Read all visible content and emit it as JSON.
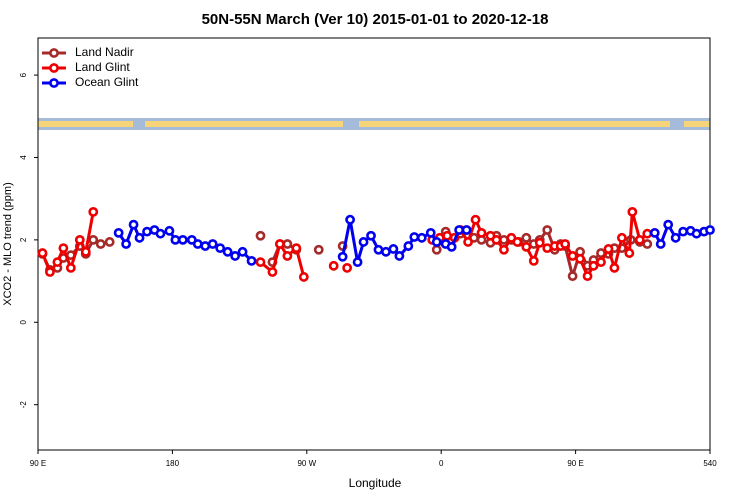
{
  "chart_data": {
    "type": "line",
    "title": "50N-55N March (Ver 10)   2015-01-01 to 2020-12-18",
    "x_label": "Longitude",
    "y_label": "XCO2 - MLO trend (ppm)",
    "xlim": [
      90,
      540
    ],
    "xticks": [
      {
        "value": 90,
        "label": "90 E"
      },
      180,
      {
        "value": 270,
        "label": "90 W"
      },
      {
        "value": 360,
        "label": "0"
      },
      {
        "value": 450,
        "label": "90 E"
      },
      540
    ],
    "ylim": [
      -3.1,
      6.9
    ],
    "yticks": [
      -2,
      0,
      2,
      4,
      6
    ],
    "legend": "top-left",
    "series": [
      {
        "name": "Land Nadir",
        "color": "#a52a2a",
        "x": [
          93,
          98,
          103,
          107,
          112,
          118,
          122,
          127,
          132,
          138,
          185,
          239,
          243,
          247,
          252,
          257,
          263,
          270,
          278,
          285,
          294,
          320,
          357,
          363,
          367,
          373,
          377,
          382,
          387,
          393,
          397,
          402,
          407,
          412,
          417,
          422,
          426,
          431,
          436,
          440,
          443,
          448,
          453,
          458,
          462,
          467,
          472,
          476,
          481,
          487,
          493,
          498
        ],
        "values": [
          1.66,
          1.27,
          1.32,
          1.56,
          1.63,
          1.85,
          1.66,
          2.0,
          1.9,
          1.95,
          null,
          2.1,
          null,
          1.46,
          1.9,
          1.9,
          1.76,
          null,
          1.76,
          null,
          1.85,
          null,
          1.76,
          2.2,
          2.0,
          2.15,
          2.24,
          2.05,
          2.0,
          1.93,
          2.1,
          2.0,
          2.0,
          1.95,
          2.05,
          1.9,
          2.0,
          2.24,
          1.76,
          1.9,
          1.85,
          1.12,
          1.71,
          1.37,
          1.51,
          1.68,
          1.66,
          1.8,
          1.8,
          2.0,
          1.95,
          1.9
        ]
      },
      {
        "name": "Land Glint",
        "color": "#ee0000",
        "x": [
          93,
          98,
          103,
          107,
          112,
          118,
          122,
          127,
          200,
          239,
          247,
          252,
          257,
          263,
          268,
          280,
          288,
          292,
          297,
          330,
          354,
          359,
          364,
          369,
          373,
          378,
          383,
          387,
          393,
          397,
          402,
          407,
          411,
          417,
          422,
          426,
          431,
          436,
          440,
          443,
          448,
          453,
          458,
          462,
          467,
          472,
          476,
          481,
          486,
          488,
          493,
          498
        ],
        "values": [
          1.68,
          1.22,
          1.46,
          1.8,
          1.32,
          2.0,
          1.71,
          2.68,
          null,
          1.46,
          1.22,
          1.9,
          1.61,
          1.8,
          1.1,
          null,
          1.37,
          null,
          1.32,
          null,
          2.0,
          2.05,
          2.1,
          2.05,
          2.24,
          1.95,
          2.49,
          2.17,
          2.1,
          2.0,
          1.76,
          2.05,
          1.95,
          1.83,
          1.49,
          1.93,
          1.8,
          1.85,
          1.85,
          1.9,
          1.61,
          1.54,
          1.12,
          1.37,
          1.46,
          1.78,
          1.32,
          2.05,
          1.68,
          2.68,
          2.0,
          2.15
        ]
      },
      {
        "name": "Ocean Glint",
        "color": "#0000ee",
        "x": [
          144,
          149,
          154,
          158,
          163,
          168,
          172,
          178,
          182,
          187,
          193,
          197,
          202,
          207,
          212,
          217,
          222,
          227,
          233,
          260,
          294,
          299,
          304,
          308,
          313,
          318,
          323,
          328,
          332,
          338,
          342,
          347,
          353,
          357,
          363,
          367,
          372,
          377,
          440,
          503,
          507,
          512,
          517,
          522,
          527,
          531,
          536,
          540
        ],
        "values": [
          2.17,
          1.9,
          2.37,
          2.05,
          2.2,
          2.24,
          2.15,
          2.22,
          2.0,
          2.0,
          2.0,
          1.9,
          1.85,
          1.9,
          1.8,
          1.71,
          1.61,
          1.71,
          1.49,
          null,
          1.59,
          2.49,
          1.46,
          1.95,
          2.1,
          1.76,
          1.71,
          1.78,
          1.61,
          1.85,
          2.07,
          2.05,
          2.17,
          1.95,
          1.9,
          1.83,
          2.24,
          2.24,
          null,
          2.17,
          1.9,
          2.37,
          2.05,
          2.2,
          2.22,
          2.15,
          2.2,
          2.24
        ]
      }
    ]
  }
}
